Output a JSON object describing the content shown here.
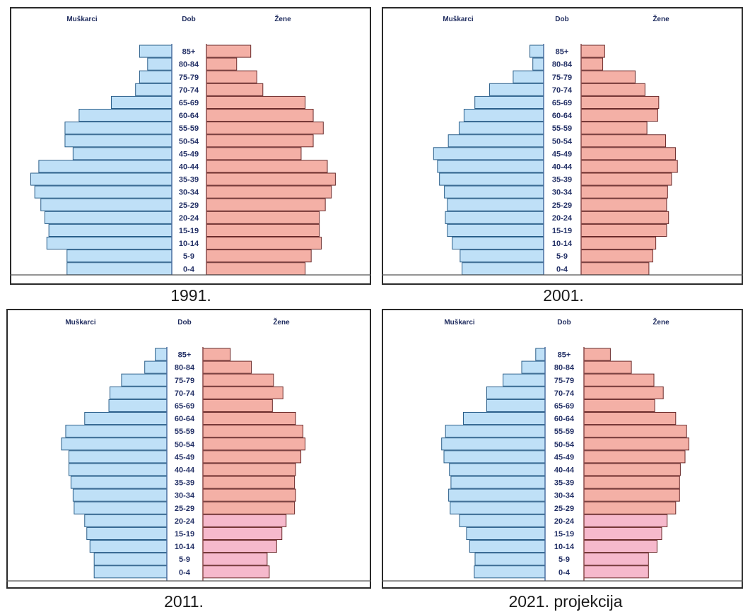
{
  "chart_data": [
    {
      "type": "bar",
      "title": "1991.",
      "headers": {
        "left": "Muškarci",
        "center": "Dob",
        "right": "Žene"
      },
      "categories": [
        "85+",
        "80-84",
        "75-79",
        "70-74",
        "65-69",
        "60-64",
        "55-59",
        "50-54",
        "45-49",
        "40-44",
        "35-39",
        "30-34",
        "25-29",
        "20-24",
        "15-19",
        "10-14",
        "5-9",
        "0-4"
      ],
      "series": [
        {
          "name": "Muškarci",
          "values": [
            1.6,
            1.2,
            1.6,
            1.8,
            3.0,
            4.6,
            5.3,
            5.3,
            4.9,
            6.6,
            7.0,
            6.8,
            6.5,
            6.3,
            6.1,
            6.2,
            5.2,
            5.2
          ]
        },
        {
          "name": "Žene",
          "values": [
            2.2,
            1.5,
            2.5,
            2.8,
            4.9,
            5.3,
            5.8,
            5.3,
            4.7,
            6.0,
            6.4,
            6.2,
            5.9,
            5.6,
            5.6,
            5.7,
            5.2,
            4.9
          ]
        }
      ],
      "xlabel": "",
      "ylabel": ""
    },
    {
      "type": "bar",
      "title": "2001.",
      "headers": {
        "left": "Muškarci",
        "center": "Dob",
        "right": "Žene"
      },
      "categories": [
        "85+",
        "80-84",
        "75-79",
        "70-74",
        "65-69",
        "60-64",
        "55-59",
        "50-54",
        "45-49",
        "40-44",
        "35-39",
        "30-34",
        "25-29",
        "20-24",
        "15-19",
        "10-14",
        "5-9",
        "0-4"
      ],
      "series": [
        {
          "name": "Muškarci",
          "values": [
            1.4,
            1.1,
            3.1,
            5.5,
            7.0,
            8.1,
            8.6,
            9.7,
            11.2,
            10.8,
            10.6,
            10.1,
            9.8,
            10.0,
            9.8,
            9.3,
            8.5,
            8.3
          ]
        },
        {
          "name": "Žene",
          "values": [
            2.4,
            2.2,
            5.5,
            6.5,
            7.9,
            7.8,
            6.7,
            8.6,
            9.6,
            9.8,
            9.2,
            8.8,
            8.7,
            8.9,
            8.7,
            7.6,
            7.3,
            6.9
          ]
        }
      ],
      "xlabel": "",
      "ylabel": ""
    },
    {
      "type": "bar",
      "title": "2011.",
      "headers": {
        "left": "Muškarci",
        "center": "Dob",
        "right": "Žene"
      },
      "categories": [
        "85+",
        "80-84",
        "75-79",
        "70-74",
        "65-69",
        "60-64",
        "55-59",
        "50-54",
        "45-49",
        "40-44",
        "35-39",
        "30-34",
        "25-29",
        "20-24",
        "15-19",
        "10-14",
        "5-9",
        "0-4"
      ],
      "series": [
        {
          "name": "Muškarci",
          "values": [
            1.1,
            2.1,
            4.3,
            5.4,
            5.5,
            7.8,
            9.6,
            10.0,
            9.3,
            9.3,
            9.1,
            8.9,
            8.8,
            7.8,
            7.6,
            7.3,
            6.9,
            6.9
          ]
        },
        {
          "name": "Žene",
          "values": [
            2.6,
            4.6,
            6.7,
            7.6,
            6.6,
            8.8,
            9.5,
            9.7,
            9.3,
            8.8,
            8.7,
            8.8,
            8.7,
            7.9,
            7.5,
            7.0,
            6.1,
            6.3
          ]
        }
      ],
      "xlabel": "",
      "ylabel": ""
    },
    {
      "type": "bar",
      "title": "2021. projekcija",
      "headers": {
        "left": "Muškarci",
        "center": "Dob",
        "right": "Žene"
      },
      "categories": [
        "85+",
        "80-84",
        "75-79",
        "70-74",
        "65-69",
        "60-64",
        "55-59",
        "50-54",
        "45-49",
        "40-44",
        "35-39",
        "30-34",
        "25-29",
        "20-24",
        "15-19",
        "10-14",
        "5-9",
        "0-4"
      ],
      "series": [
        {
          "name": "Muškarci",
          "values": [
            1.2,
            3.0,
            5.4,
            7.5,
            7.5,
            10.5,
            12.8,
            13.3,
            13.0,
            12.3,
            12.1,
            12.4,
            12.2,
            11.0,
            10.1,
            9.7,
            9.0,
            9.1
          ]
        },
        {
          "name": "Žene",
          "values": [
            3.4,
            6.1,
            9.0,
            10.2,
            9.1,
            11.8,
            13.2,
            13.5,
            13.0,
            12.4,
            12.3,
            12.3,
            11.8,
            10.7,
            10.0,
            9.4,
            8.3,
            8.3
          ]
        }
      ],
      "xlabel": "",
      "ylabel": ""
    }
  ],
  "colors": {
    "male": "#bfe0f7",
    "male_stroke": "#2b5f8a",
    "female": "#f4b0a6",
    "female_young": "#f6b9cc",
    "female_stroke": "#6a2b2b",
    "header_text": "#1e2b5e",
    "label_text": "#233066"
  }
}
